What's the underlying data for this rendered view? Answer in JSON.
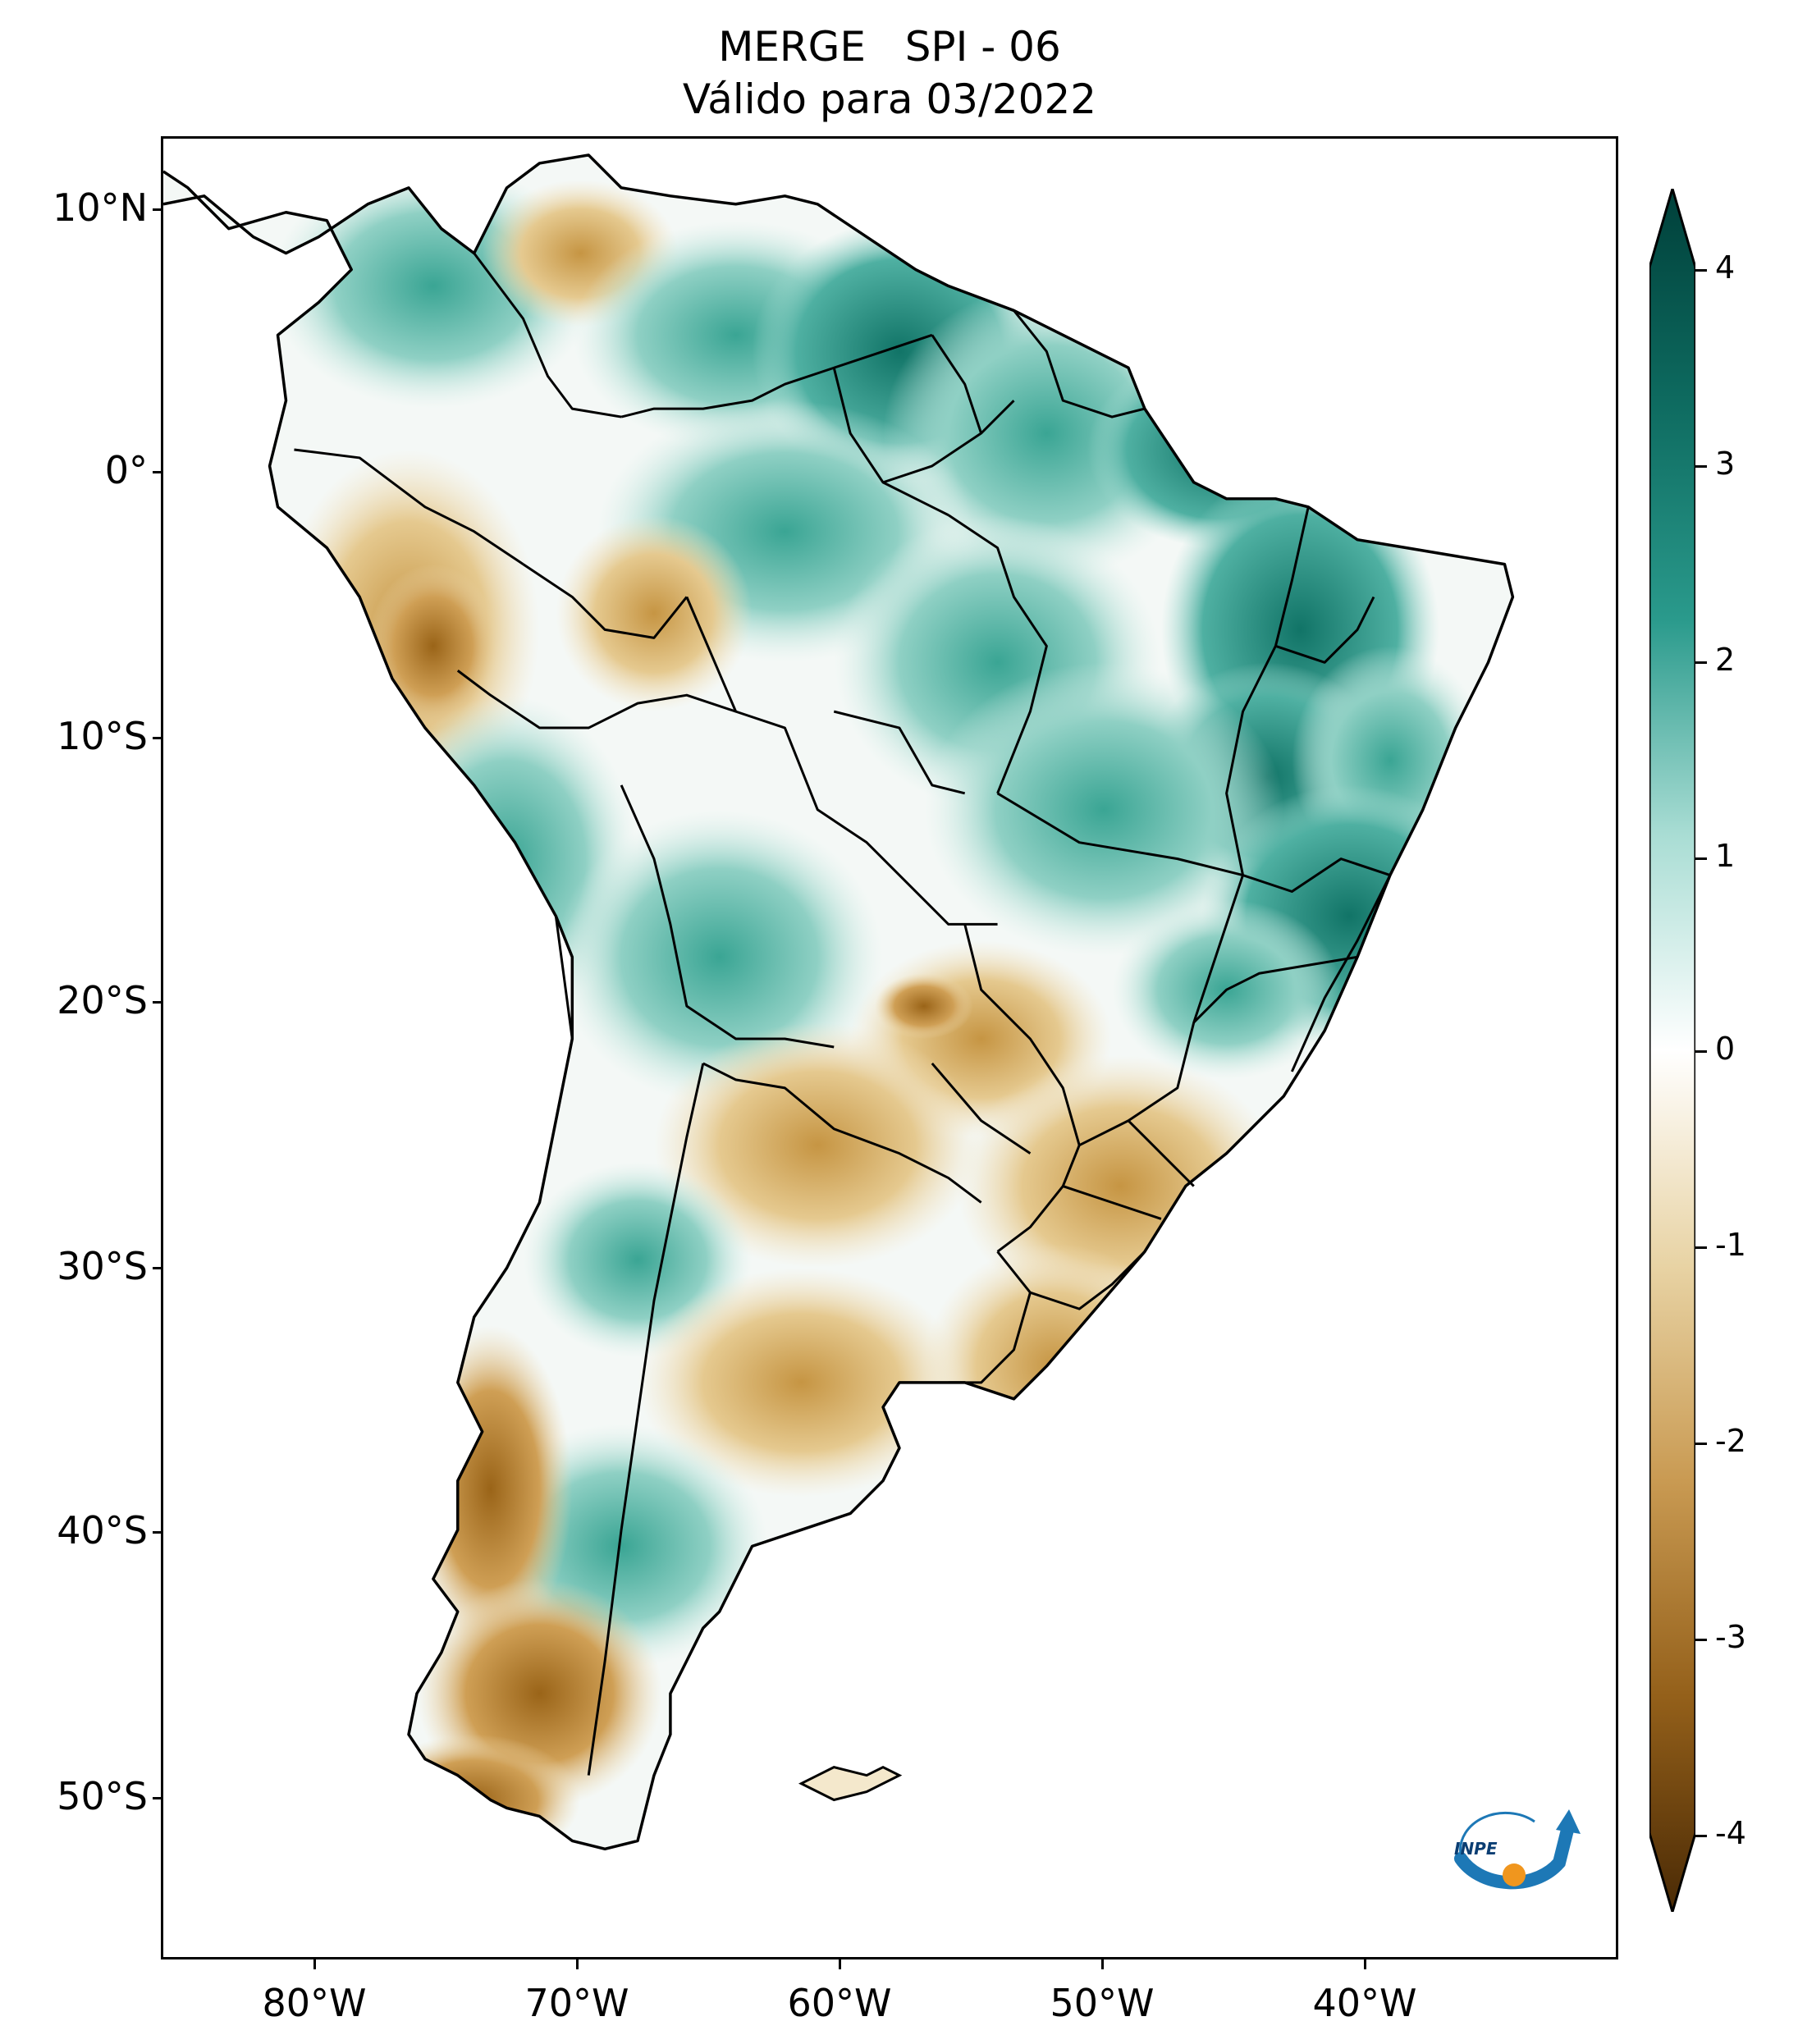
{
  "title": {
    "line1": "MERGE   SPI - 06",
    "line2": "Válido para 03/2022"
  },
  "axes": {
    "y_labels": [
      "10°N",
      "0°",
      "10°S",
      "20°S",
      "30°S",
      "40°S",
      "50°S"
    ],
    "x_labels": [
      "80°W",
      "70°W",
      "60°W",
      "50°W",
      "40°W"
    ]
  },
  "colorbar": {
    "labels": [
      "4",
      "3",
      "2",
      "1",
      "0",
      "-1",
      "-2",
      "-3",
      "-4"
    ],
    "colors": {
      "max": "#00403a",
      "high": "#2a9a8c",
      "mid_high": "#a9ddd4",
      "zero": "#ffffff",
      "mid_low": "#e8d3a4",
      "low": "#b07a2a",
      "min": "#4a2a05"
    }
  },
  "logo": {
    "text": "INPE"
  }
}
